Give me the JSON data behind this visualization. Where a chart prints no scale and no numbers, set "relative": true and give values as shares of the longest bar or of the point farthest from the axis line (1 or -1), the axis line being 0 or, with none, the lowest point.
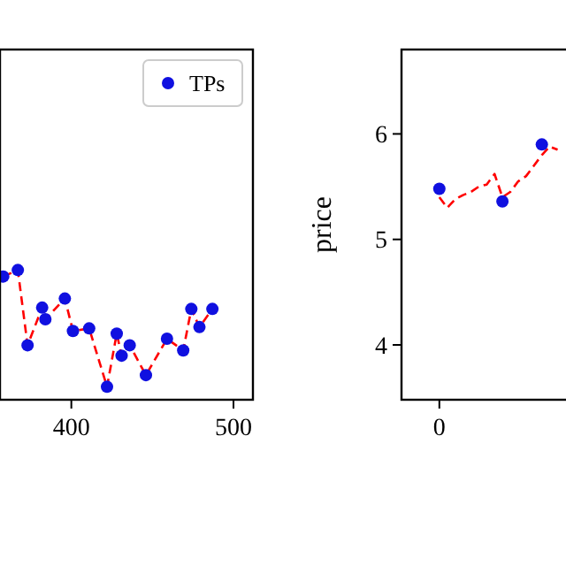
{
  "chart_data": [
    {
      "type": "line",
      "relative": true,
      "x": [
        358,
        367,
        373,
        382,
        384,
        396,
        401,
        411,
        422,
        428,
        431,
        436,
        446,
        459,
        469,
        474,
        479,
        487
      ],
      "xlim": [
        356,
        512
      ],
      "xticks": [
        400,
        500
      ],
      "legend": "top right",
      "series": [
        {
          "type": "line",
          "color": "#ff0000",
          "line_style": "dashed",
          "marker": "none",
          "values": [
            0.95,
            1,
            0.42,
            0.71,
            0.62,
            0.78,
            0.53,
            0.55,
            0.1,
            0.51,
            0.34,
            0.42,
            0.19,
            0.47,
            0.38,
            0.7,
            0.56,
            0.7
          ]
        },
        {
          "type": "scatter",
          "name": "TPs",
          "color": "#1010e0",
          "marker": "circle",
          "values": [
            0.95,
            1,
            0.42,
            0.71,
            0.62,
            0.78,
            0.53,
            0.55,
            0.1,
            0.51,
            0.34,
            0.42,
            0.19,
            0.47,
            0.38,
            0.7,
            0.56,
            0.7
          ]
        }
      ]
    },
    {
      "type": "line",
      "ylabel": "price",
      "categories": [
        null,
        null,
        null,
        null,
        null,
        null,
        null,
        null,
        null,
        null,
        null,
        null,
        null,
        null,
        null,
        null
      ],
      "annotations": [
        "0"
      ],
      "ylim": [
        3.48,
        6.8
      ],
      "yticks": [
        4,
        5,
        6
      ],
      "series": [
        {
          "type": "line",
          "color": "#ff0000",
          "line_style": "dashed",
          "marker": "none",
          "values": [
            5.4,
            5.3,
            5.38,
            5.42,
            5.45,
            5.5,
            5.52,
            5.62,
            5.4,
            5.45,
            5.55,
            5.6,
            5.7,
            5.8,
            5.88,
            5.85
          ]
        },
        {
          "type": "scatter",
          "color": "#1010e0",
          "marker": "circle",
          "values": [
            5.48,
            null,
            null,
            null,
            null,
            null,
            null,
            null,
            5.36,
            null,
            null,
            null,
            null,
            5.9,
            null,
            null
          ]
        }
      ]
    }
  ]
}
